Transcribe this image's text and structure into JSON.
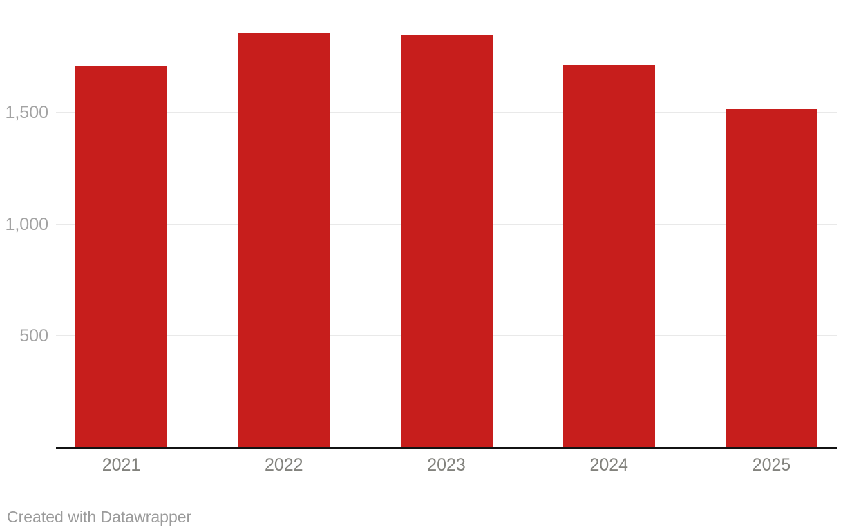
{
  "chart_data": {
    "type": "bar",
    "categories": [
      "2021",
      "2022",
      "2023",
      "2024",
      "2025"
    ],
    "values": [
      1710,
      1855,
      1850,
      1715,
      1515
    ],
    "title": "",
    "xlabel": "",
    "ylabel": "",
    "ylim": [
      0,
      2005
    ],
    "yticks": [
      500,
      1000,
      1500
    ],
    "ytick_labels": [
      "500",
      "1,000",
      "1,500"
    ],
    "grid": true,
    "legend": "none",
    "bar_color": "#c71e1c"
  },
  "colors": {
    "bar": "#c71e1c",
    "axis_line": "#131313",
    "gridline": "#e9e9e9",
    "y_tick_label": "#a3a3a3",
    "x_tick_label": "#82827d",
    "footer_text": "#9b9b9b",
    "background": "#ffffff"
  },
  "footer": {
    "credit": "Created with Datawrapper"
  }
}
